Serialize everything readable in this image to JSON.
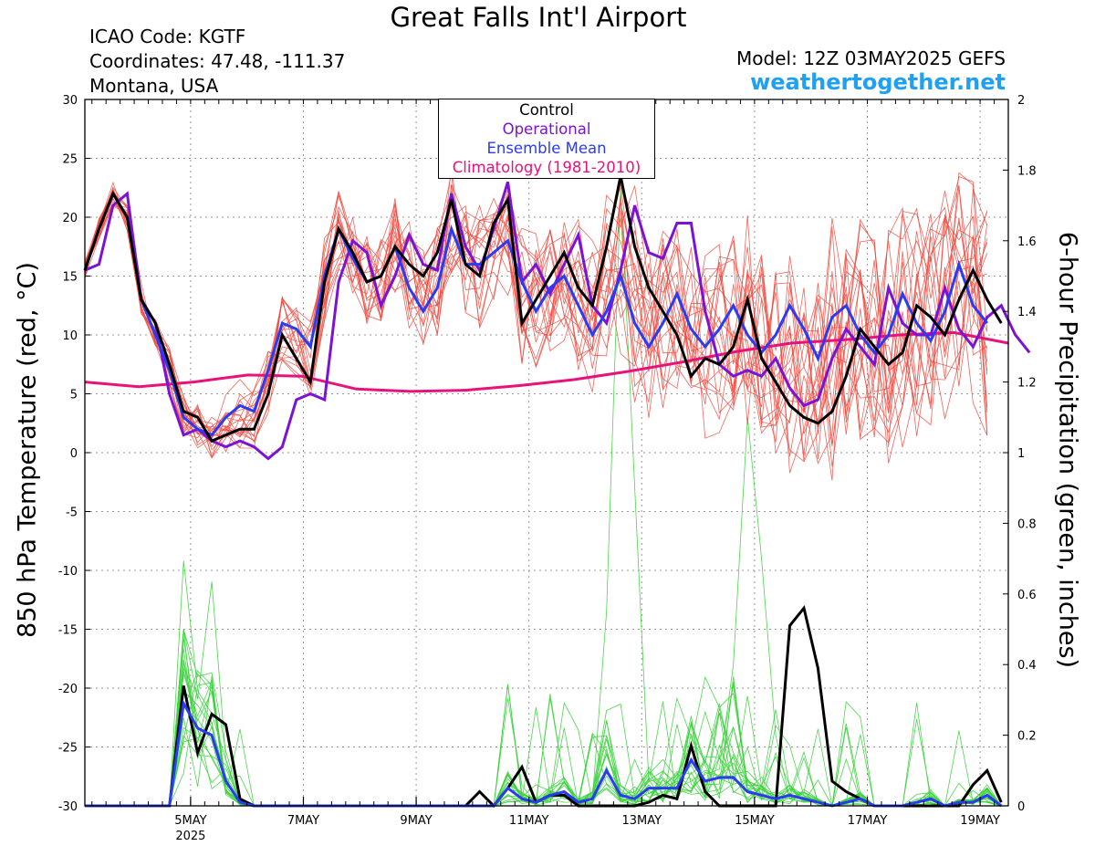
{
  "header": {
    "title": "Great Falls Int'l Airport",
    "icao": "ICAO Code: KGTF",
    "coords": "Coordinates: 47.48, -111.37",
    "region": "Montana, USA",
    "model": "Model: 12Z 03MAY2025 GEFS",
    "site": "weathertogether.net"
  },
  "colors": {
    "control": "#000000",
    "operational": "#7b12d4",
    "ensemble_mean": "#2a3cf0",
    "climatology": "#e8127a",
    "ens_temp": "#ee4a40",
    "ens_precip": "#39d13a",
    "site": "#1fa0f0"
  },
  "chart_data": {
    "type": "line",
    "ylabel": "850 hPa Temperature (red, °C)",
    "y2label": "6-hour Precipitation (green, inches)",
    "x_start": "03MAY2025 12Z",
    "x_step_hours": 6,
    "xlim_days": [
      3.125,
      19.5
    ],
    "ylim": [
      -30,
      30
    ],
    "y2lim": [
      0,
      2
    ],
    "yticks": [
      "-30",
      "-25",
      "-20",
      "-15",
      "-10",
      "-5",
      "0",
      "5",
      "10",
      "15",
      "20",
      "25",
      "30"
    ],
    "y2ticks": [
      "0",
      "0.2",
      "0.4",
      "0.6",
      "0.8",
      "1",
      "1.2",
      "1.4",
      "1.6",
      "1.8",
      "2"
    ],
    "xticks": [
      {
        "day": 5,
        "label": "5MAY",
        "sub": "2025"
      },
      {
        "day": 7,
        "label": "7MAY",
        "sub": ""
      },
      {
        "day": 9,
        "label": "9MAY",
        "sub": ""
      },
      {
        "day": 11,
        "label": "11MAY",
        "sub": ""
      },
      {
        "day": 13,
        "label": "13MAY",
        "sub": ""
      },
      {
        "day": 15,
        "label": "15MAY",
        "sub": ""
      },
      {
        "day": 17,
        "label": "17MAY",
        "sub": ""
      },
      {
        "day": 19,
        "label": "19MAY",
        "sub": ""
      }
    ],
    "grid": true,
    "legend_position": "top-center",
    "legend": [
      "Control",
      "Operational",
      "Ensemble Mean",
      "Climatology (1981-2010)"
    ],
    "series": [
      {
        "name": "Control",
        "axis": "temperature",
        "values": [
          15.5,
          19,
          22,
          20,
          13,
          11,
          7.5,
          3.5,
          3,
          1,
          1.5,
          2,
          2,
          5,
          10,
          8,
          6,
          14.5,
          19,
          17,
          14.5,
          15,
          17.5,
          16,
          15,
          17,
          21.5,
          16,
          15,
          19.5,
          21.5,
          11,
          13,
          15,
          17,
          14,
          12.5,
          17.5,
          23.5,
          17.5,
          14,
          12,
          10,
          6.5,
          8,
          7.5,
          9,
          13,
          8,
          6,
          4,
          3,
          2.5,
          3.5,
          6.5,
          10.5,
          9,
          7.5,
          8.5,
          12.5,
          11.5,
          10,
          13,
          15.5,
          13,
          11
        ]
      },
      {
        "name": "Operational",
        "axis": "temperature",
        "values": [
          15.5,
          16,
          21,
          22,
          13,
          11,
          5,
          1.5,
          2,
          1,
          0.5,
          1,
          0.5,
          -0.5,
          0.5,
          4.5,
          5,
          4.5,
          14.5,
          18,
          17,
          12.5,
          15,
          18.5,
          16,
          15.5,
          22,
          17.5,
          15.5,
          19,
          23,
          14.5,
          16,
          13.5,
          16,
          18.5,
          12.5,
          11,
          15.5,
          21,
          17,
          16.5,
          19.5,
          19.5,
          12,
          7.5,
          6.5,
          7,
          6.5,
          8,
          5.5,
          4,
          4.5,
          8,
          10.5,
          9,
          7.5,
          14,
          11,
          10,
          10,
          14,
          10.5,
          9,
          11.5,
          12.5,
          10,
          8.5
        ]
      },
      {
        "name": "Ensemble Mean",
        "axis": "temperature",
        "values": [
          15.5,
          19,
          22,
          20,
          13,
          10,
          7,
          3,
          2,
          1.5,
          3,
          4,
          3.5,
          7,
          11,
          10.5,
          9,
          15,
          19,
          16.5,
          14.5,
          15,
          17.5,
          14,
          12,
          14,
          19,
          16,
          16,
          17,
          18,
          14.5,
          12,
          14,
          15,
          12.5,
          10,
          12,
          15,
          11,
          9,
          11,
          13.5,
          10.5,
          9,
          10.5,
          12.5,
          10,
          8.5,
          10,
          12.5,
          10.5,
          8,
          11.5,
          12.5,
          10,
          8.5,
          10,
          13.5,
          11,
          9.5,
          12,
          16,
          12.5,
          11
        ]
      },
      {
        "name": "Climatology (1981-2010)",
        "axis": "temperature",
        "values": [
          6,
          5.6,
          6,
          6.6,
          6.5,
          5.4,
          5.2,
          5.3,
          5.7,
          6.2,
          6.9,
          7.7,
          8.6,
          9.3,
          9.6,
          10,
          10.2,
          9.3
        ]
      },
      {
        "name": "Control precip",
        "axis": "precipitation",
        "values": [
          0,
          0,
          0,
          0,
          0,
          0,
          0,
          0.34,
          0.15,
          0.26,
          0.23,
          0.02,
          0,
          0,
          0,
          0,
          0,
          0,
          0,
          0,
          0,
          0,
          0,
          0,
          0,
          0,
          0,
          0,
          0.04,
          0,
          0.05,
          0.11,
          0.01,
          0.03,
          0.03,
          0,
          0,
          0,
          0,
          0,
          0.01,
          0.03,
          0.02,
          0.17,
          0.04,
          0,
          0,
          0,
          0,
          0,
          0.51,
          0.56,
          0.39,
          0.07,
          0.04,
          0.02,
          0,
          0,
          0,
          0,
          0,
          0,
          0,
          0.06,
          0.1,
          0.01
        ]
      },
      {
        "name": "Ensemble Mean precip",
        "axis": "precipitation",
        "values": [
          0,
          0,
          0,
          0,
          0,
          0,
          0,
          0.29,
          0.22,
          0.2,
          0.07,
          0.01,
          0,
          0,
          0,
          0,
          0,
          0,
          0,
          0,
          0,
          0,
          0,
          0,
          0,
          0,
          0,
          0,
          0,
          0,
          0.05,
          0.02,
          0.01,
          0.03,
          0.04,
          0.01,
          0.02,
          0.1,
          0.03,
          0.02,
          0.05,
          0.05,
          0.05,
          0.13,
          0.07,
          0.08,
          0.08,
          0.04,
          0.03,
          0.02,
          0.03,
          0.02,
          0.01,
          0,
          0.01,
          0.02,
          0,
          0,
          0,
          0.01,
          0.02,
          0,
          0.01,
          0.01,
          0.03,
          0
        ]
      }
    ]
  }
}
